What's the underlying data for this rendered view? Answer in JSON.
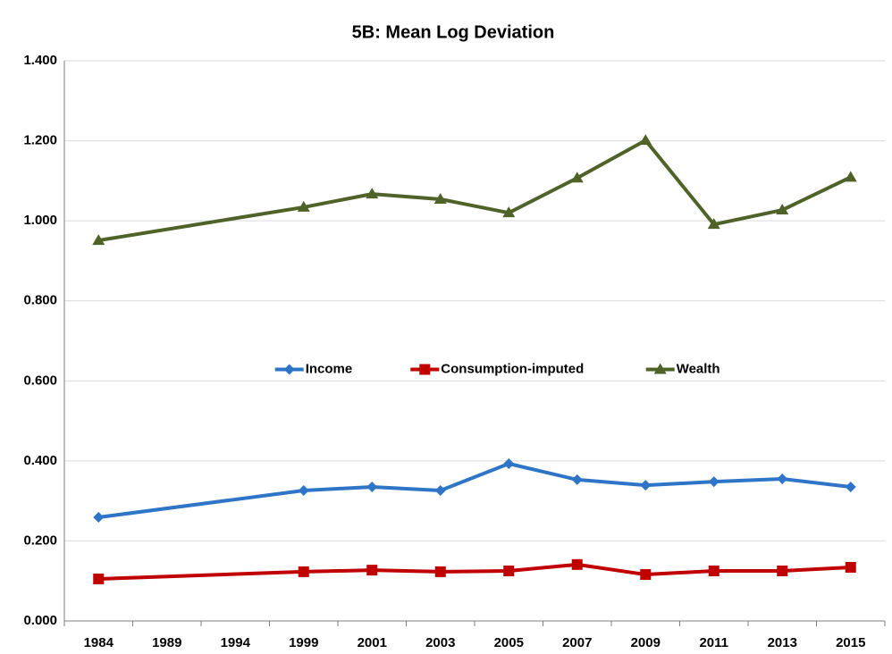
{
  "chart_data": {
    "type": "line",
    "title": "5B:  Mean Log Deviation",
    "categories": [
      "1984",
      "1989",
      "1994",
      "1999",
      "2001",
      "2003",
      "2005",
      "2007",
      "2009",
      "2011",
      "2013",
      "2015"
    ],
    "series": [
      {
        "name": "Income",
        "color": "#2e75c8",
        "marker": "diamond",
        "values": [
          0.259,
          null,
          null,
          0.326,
          0.335,
          0.326,
          0.393,
          0.353,
          0.339,
          0.348,
          0.355,
          0.335
        ]
      },
      {
        "name": "Consumption-imputed",
        "color": "#c00000",
        "marker": "square",
        "values": [
          0.105,
          null,
          null,
          0.123,
          0.127,
          0.123,
          0.125,
          0.141,
          0.116,
          0.125,
          0.125,
          0.134
        ]
      },
      {
        "name": "Wealth",
        "color": "#4f6228",
        "marker": "triangle",
        "values": [
          0.951,
          null,
          null,
          1.034,
          1.067,
          1.054,
          1.02,
          1.107,
          1.201,
          0.991,
          1.027,
          1.109
        ]
      }
    ],
    "connect_gaps": true,
    "ylim": [
      0,
      1.4
    ],
    "yticks": [
      {
        "value": 0,
        "label": "0.000"
      },
      {
        "value": 0.2,
        "label": "0.200"
      },
      {
        "value": 0.4,
        "label": "0.400"
      },
      {
        "value": 0.6,
        "label": "0.600"
      },
      {
        "value": 0.8,
        "label": "0.800"
      },
      {
        "value": 1.0,
        "label": "1.000"
      },
      {
        "value": 1.2,
        "label": "1.200"
      },
      {
        "value": 1.4,
        "label": "1.400"
      }
    ],
    "grid": true,
    "legend": "center"
  }
}
